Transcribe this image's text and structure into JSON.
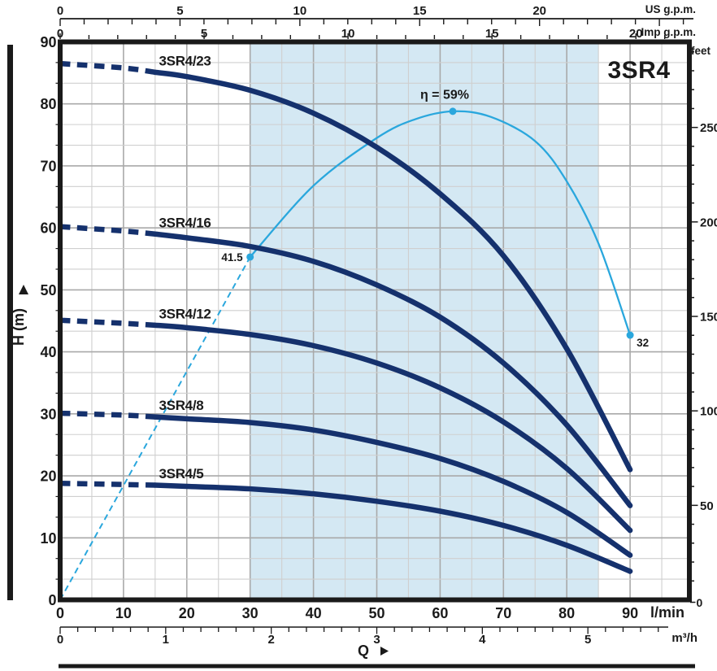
{
  "chart_data": {
    "type": "line",
    "title": "3SR4",
    "axes": {
      "lmin": {
        "unit": "l/min",
        "axis_label": "Q",
        "ticks": [
          0,
          10,
          20,
          30,
          40,
          50,
          60,
          70,
          80,
          90
        ],
        "minor_step": 5,
        "range": [
          0,
          99.4
        ]
      },
      "m3h": {
        "unit": "m³/h",
        "ticks": [
          0,
          1,
          2,
          3,
          4,
          5
        ],
        "lmin_per_unit": 16.667
      },
      "us_gpm": {
        "unit": "US g.p.m.",
        "ticks": [
          0,
          5,
          10,
          15,
          20
        ],
        "lmin_per_unit": 3.785
      },
      "imp_gpm": {
        "unit": "Imp g.p.m.",
        "ticks": [
          0,
          5,
          10,
          15,
          20
        ],
        "lmin_per_unit": 4.546
      },
      "h_m": {
        "unit": "m",
        "axis_label": "H (m)",
        "ticks": [
          0,
          10,
          20,
          30,
          40,
          50,
          60,
          70,
          80,
          90
        ],
        "range": [
          0,
          90
        ]
      },
      "feet": {
        "unit": "feet",
        "ticks": [
          50,
          100,
          150,
          200,
          250
        ],
        "minor_step": 10,
        "m_per_foot": 0.3048
      }
    },
    "recommended_band_lmin": [
      30,
      85
    ],
    "series": [
      {
        "name": "3SR4/23",
        "dashed_until_lmin": 15,
        "points": [
          [
            0,
            86.5
          ],
          [
            10,
            85.8
          ],
          [
            15,
            85.1
          ],
          [
            20,
            84.4
          ],
          [
            30,
            82.2
          ],
          [
            40,
            78.5
          ],
          [
            50,
            73.0
          ],
          [
            60,
            65.5
          ],
          [
            70,
            55.5
          ],
          [
            80,
            40.5
          ],
          [
            90,
            21.0
          ]
        ]
      },
      {
        "name": "3SR4/16",
        "dashed_until_lmin": 15,
        "points": [
          [
            0,
            60.2
          ],
          [
            10,
            59.5
          ],
          [
            15,
            59.0
          ],
          [
            20,
            58.4
          ],
          [
            30,
            57.0
          ],
          [
            40,
            54.6
          ],
          [
            50,
            50.8
          ],
          [
            60,
            45.6
          ],
          [
            70,
            38.2
          ],
          [
            80,
            28.2
          ],
          [
            90,
            15.2
          ]
        ]
      },
      {
        "name": "3SR4/12",
        "dashed_until_lmin": 15,
        "points": [
          [
            0,
            45.1
          ],
          [
            10,
            44.6
          ],
          [
            15,
            44.3
          ],
          [
            20,
            43.9
          ],
          [
            30,
            42.8
          ],
          [
            40,
            41.0
          ],
          [
            50,
            38.2
          ],
          [
            60,
            34.2
          ],
          [
            70,
            28.7
          ],
          [
            80,
            21.2
          ],
          [
            90,
            11.2
          ]
        ]
      },
      {
        "name": "3SR4/8",
        "dashed_until_lmin": 15,
        "points": [
          [
            0,
            30.1
          ],
          [
            10,
            29.8
          ],
          [
            15,
            29.5
          ],
          [
            20,
            29.2
          ],
          [
            30,
            28.6
          ],
          [
            40,
            27.4
          ],
          [
            50,
            25.4
          ],
          [
            60,
            22.8
          ],
          [
            70,
            19.1
          ],
          [
            80,
            14.1
          ],
          [
            90,
            7.2
          ]
        ]
      },
      {
        "name": "3SR4/5",
        "dashed_until_lmin": 15,
        "points": [
          [
            0,
            18.8
          ],
          [
            10,
            18.6
          ],
          [
            15,
            18.5
          ],
          [
            20,
            18.3
          ],
          [
            30,
            17.9
          ],
          [
            40,
            17.1
          ],
          [
            50,
            15.9
          ],
          [
            60,
            14.3
          ],
          [
            70,
            12.0
          ],
          [
            80,
            8.8
          ],
          [
            90,
            4.6
          ]
        ]
      }
    ],
    "efficiency": {
      "dashed_segment": [
        [
          0,
          0
        ],
        [
          30,
          55.3
        ]
      ],
      "points": [
        [
          30,
          55.3
        ],
        [
          40,
          66.8
        ],
        [
          50,
          74.5
        ],
        [
          56,
          77.5
        ],
        [
          62,
          78.8
        ],
        [
          68,
          77.9
        ],
        [
          75,
          74.0
        ],
        [
          80,
          67.5
        ],
        [
          85,
          57.5
        ],
        [
          90,
          42.7
        ]
      ],
      "markers": [
        {
          "q_lmin": 30,
          "h_m": 55.3,
          "label": "41.5"
        },
        {
          "q_lmin": 62,
          "h_m": 78.8,
          "label": "η = 59%"
        },
        {
          "q_lmin": 90,
          "h_m": 42.7,
          "label": "32"
        }
      ]
    },
    "colors": {
      "curve_navy": "#15316d",
      "title_navy": "#1c3a80",
      "efficiency_blue": "#2aa7dd",
      "band_fill": "#d4e8f3",
      "grid_minor": "#cfcfcf",
      "grid_major": "#a9a9a9",
      "axis_black": "#1a1a1a"
    }
  }
}
